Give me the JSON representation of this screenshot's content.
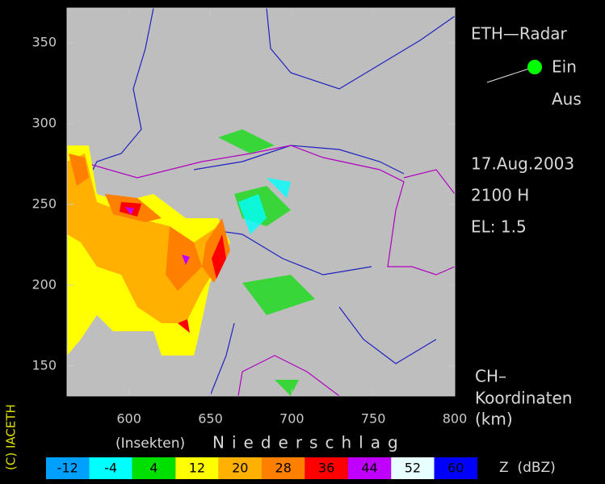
{
  "map": {
    "xlim": [
      562,
      800
    ],
    "ylim": [
      131.5,
      371.5
    ],
    "xticks": [
      600,
      650,
      700,
      750,
      800
    ],
    "yticks": [
      150,
      200,
      250,
      300,
      350
    ]
  },
  "sidebar": {
    "title": "ETH—Radar",
    "on": "Ein",
    "off": "Aus",
    "date": "17.Aug.2003",
    "time": "2100 H",
    "elevation": "EL: 1.5",
    "coords_line1": "CH–",
    "coords_line2": "Koordinaten",
    "coords_line3": "(km)"
  },
  "copyright": "(C) IACETH",
  "legend": {
    "left_label": "(Insekten)",
    "right_label": "Niederschlag",
    "unit": "Z  (dBZ)",
    "values": [
      -12,
      -4,
      4,
      12,
      20,
      28,
      36,
      44,
      52,
      60
    ],
    "colors": [
      "#00a0ff",
      "#00ffff",
      "#00e000",
      "#ffff00",
      "#ffb000",
      "#ff8000",
      "#ff0000",
      "#c000ff",
      "#e8ffff",
      "#0000ff"
    ]
  }
}
